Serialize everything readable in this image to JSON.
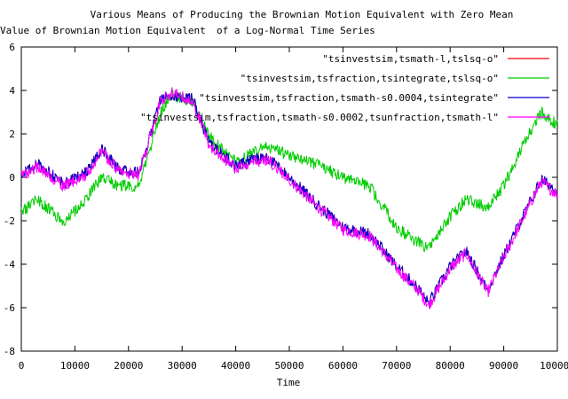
{
  "chart_data": {
    "type": "line",
    "title": "Various Means of Producing the Brownian Motion Equivalent with Zero Mean",
    "ylabel_left": "Value of Brownian Motion Equivalent",
    "ylabel_right": "of a Log-Normal Time Series",
    "xlabel": "Time",
    "xlim": [
      0,
      100000
    ],
    "ylim": [
      -8,
      6
    ],
    "x_ticks": [
      "0",
      "10000",
      "20000",
      "30000",
      "40000",
      "50000",
      "60000",
      "70000",
      "80000",
      "90000",
      "100000"
    ],
    "y_ticks": [
      "6",
      "4",
      "2",
      "0",
      "-2",
      "-4",
      "-6",
      "-8"
    ],
    "legend_position": "top-right",
    "series": [
      {
        "name": "\"tsinvestsim,tsmath-l,tslsq-o\"",
        "color": "#ff0000",
        "x": [
          0,
          3000,
          8000,
          12000,
          15000,
          18000,
          22000,
          26000,
          28000,
          32000,
          35000,
          40000,
          43000,
          46000,
          50000,
          55000,
          60000,
          65000,
          70000,
          74000,
          76000,
          80000,
          83000,
          87000,
          90000,
          93000,
          97000,
          100000
        ],
        "y": [
          0.1,
          0.6,
          -0.3,
          0.2,
          1.3,
          0.4,
          0.2,
          3.6,
          3.8,
          3.6,
          1.6,
          0.5,
          0.8,
          0.9,
          0.0,
          -1.2,
          -2.3,
          -2.6,
          -4.1,
          -5.1,
          -5.8,
          -4.1,
          -3.4,
          -5.2,
          -3.6,
          -2.1,
          -0.1,
          -0.6
        ]
      },
      {
        "name": "\"tsinvestsim,tsfraction,tsintegrate,tslsq-o\"",
        "color": "#00cc00",
        "x": [
          0,
          3000,
          8000,
          12000,
          15000,
          18000,
          22000,
          26000,
          28000,
          32000,
          35000,
          40000,
          43000,
          46000,
          50000,
          55000,
          60000,
          65000,
          70000,
          74000,
          76000,
          80000,
          83000,
          87000,
          90000,
          93000,
          97000,
          100000
        ],
        "y": [
          -1.6,
          -1.0,
          -2.1,
          -1.0,
          0.0,
          -0.4,
          -0.4,
          3.0,
          3.8,
          3.5,
          1.9,
          0.7,
          1.1,
          1.4,
          1.0,
          0.6,
          0.0,
          -0.4,
          -2.3,
          -3.0,
          -3.3,
          -1.8,
          -1.0,
          -1.4,
          -0.4,
          1.2,
          3.0,
          2.4
        ]
      },
      {
        "name": "\"tsinvestsim,tsfraction,tsmath-s0.0004,tsintegrate\"",
        "color": "#0000cc",
        "x": [
          0,
          3000,
          8000,
          12000,
          15000,
          18000,
          22000,
          26000,
          28000,
          32000,
          35000,
          40000,
          43000,
          46000,
          50000,
          55000,
          60000,
          65000,
          70000,
          74000,
          76000,
          80000,
          83000,
          87000,
          90000,
          93000,
          97000,
          100000
        ],
        "y": [
          0.1,
          0.6,
          -0.3,
          0.2,
          1.3,
          0.4,
          0.2,
          3.6,
          3.8,
          3.6,
          1.6,
          0.5,
          0.8,
          0.9,
          0.0,
          -1.2,
          -2.3,
          -2.6,
          -4.1,
          -5.1,
          -5.8,
          -4.1,
          -3.4,
          -5.2,
          -3.6,
          -2.1,
          -0.1,
          -0.6
        ]
      },
      {
        "name": "\"tsinvestsim,tsfraction,tsmath-s0.0002,tsunfraction,tsmath-l\"",
        "color": "#ff00ff",
        "x": [
          0,
          3000,
          8000,
          12000,
          15000,
          18000,
          22000,
          26000,
          28000,
          32000,
          35000,
          40000,
          43000,
          46000,
          50000,
          55000,
          60000,
          65000,
          70000,
          74000,
          76000,
          80000,
          83000,
          87000,
          90000,
          93000,
          97000,
          100000
        ],
        "y": [
          0.0,
          0.5,
          -0.4,
          0.1,
          1.2,
          0.3,
          0.1,
          3.5,
          3.9,
          3.5,
          1.5,
          0.4,
          0.7,
          0.8,
          -0.1,
          -1.3,
          -2.4,
          -2.7,
          -4.2,
          -5.2,
          -5.9,
          -4.2,
          -3.5,
          -5.3,
          -3.7,
          -2.2,
          -0.2,
          -0.8
        ]
      }
    ]
  }
}
